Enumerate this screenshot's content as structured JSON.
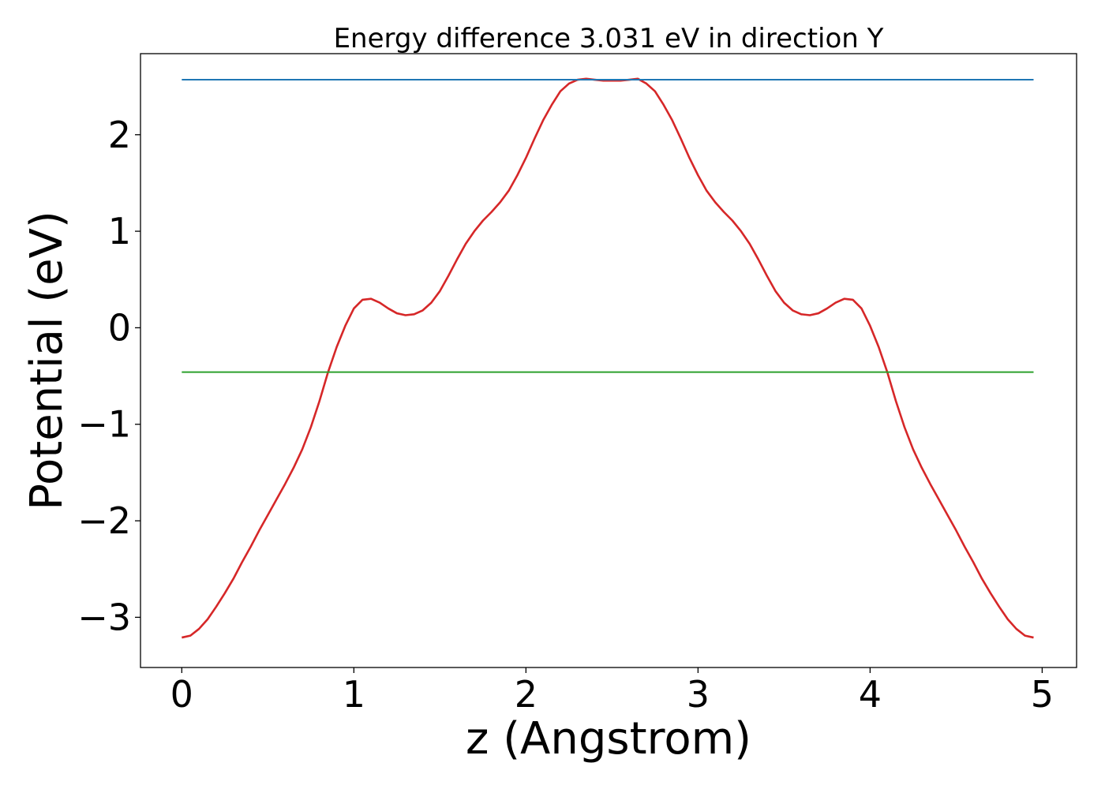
{
  "chart_data": {
    "type": "line",
    "title": "Energy difference 3.031 eV in direction Y",
    "xlabel": "z (Angstrom)",
    "ylabel": "Potential (eV)",
    "xlim": [
      -0.24,
      5.2
    ],
    "ylim": [
      -3.52,
      2.84
    ],
    "x_ticks": [
      0,
      1,
      2,
      3,
      4,
      5
    ],
    "x_tick_labels": [
      "0",
      "1",
      "2",
      "3",
      "4",
      "5"
    ],
    "y_ticks": [
      -3,
      -2,
      -1,
      0,
      1,
      2
    ],
    "y_tick_labels": [
      "−3",
      "−2",
      "−1",
      "0",
      "1",
      "2"
    ],
    "grid": false,
    "series": [
      {
        "color": "#d62728",
        "x": [
          0.0,
          0.05,
          0.1,
          0.15,
          0.2,
          0.25,
          0.3,
          0.35,
          0.4,
          0.45,
          0.5,
          0.55,
          0.6,
          0.65,
          0.7,
          0.75,
          0.8,
          0.85,
          0.9,
          0.95,
          1.0,
          1.05,
          1.1,
          1.15,
          1.2,
          1.25,
          1.3,
          1.35,
          1.4,
          1.45,
          1.5,
          1.55,
          1.6,
          1.65,
          1.7,
          1.75,
          1.8,
          1.85,
          1.9,
          1.95,
          2.0,
          2.05,
          2.1,
          2.15,
          2.2,
          2.25,
          2.3,
          2.35,
          2.4,
          2.45,
          2.5,
          2.55,
          2.6,
          2.65,
          2.7,
          2.75,
          2.8,
          2.85,
          2.9,
          2.95,
          3.0,
          3.05,
          3.1,
          3.15,
          3.2,
          3.25,
          3.3,
          3.35,
          3.4,
          3.45,
          3.5,
          3.55,
          3.6,
          3.65,
          3.7,
          3.75,
          3.8,
          3.85,
          3.9,
          3.95,
          4.0,
          4.05,
          4.1,
          4.15,
          4.2,
          4.25,
          4.3,
          4.35,
          4.4,
          4.45,
          4.5,
          4.55,
          4.6,
          4.65,
          4.7,
          4.75,
          4.8,
          4.85,
          4.9,
          4.95
        ],
        "y": [
          -3.21,
          -3.19,
          -3.12,
          -3.02,
          -2.89,
          -2.75,
          -2.6,
          -2.43,
          -2.27,
          -2.1,
          -1.94,
          -1.78,
          -1.62,
          -1.45,
          -1.26,
          -1.03,
          -0.76,
          -0.46,
          -0.2,
          0.02,
          0.2,
          0.29,
          0.3,
          0.26,
          0.2,
          0.15,
          0.13,
          0.14,
          0.18,
          0.26,
          0.38,
          0.54,
          0.71,
          0.87,
          1.0,
          1.11,
          1.2,
          1.3,
          1.42,
          1.58,
          1.76,
          1.96,
          2.15,
          2.31,
          2.45,
          2.53,
          2.57,
          2.58,
          2.57,
          2.56,
          2.56,
          2.56,
          2.57,
          2.58,
          2.53,
          2.45,
          2.31,
          2.15,
          1.96,
          1.76,
          1.58,
          1.42,
          1.3,
          1.2,
          1.11,
          1.0,
          0.87,
          0.71,
          0.54,
          0.38,
          0.26,
          0.18,
          0.14,
          0.13,
          0.15,
          0.2,
          0.26,
          0.3,
          0.29,
          0.2,
          0.02,
          -0.2,
          -0.46,
          -0.76,
          -1.03,
          -1.26,
          -1.45,
          -1.62,
          -1.78,
          -1.94,
          -2.1,
          -2.27,
          -2.43,
          -2.6,
          -2.75,
          -2.89,
          -3.02,
          -3.12,
          -3.19,
          -3.21
        ]
      },
      {
        "color": "#1f77b4",
        "x": [
          0,
          4.95
        ],
        "y": [
          2.57,
          2.57
        ]
      },
      {
        "color": "#2ca02c",
        "x": [
          0,
          4.95
        ],
        "y": [
          -0.46,
          -0.46
        ]
      }
    ]
  }
}
